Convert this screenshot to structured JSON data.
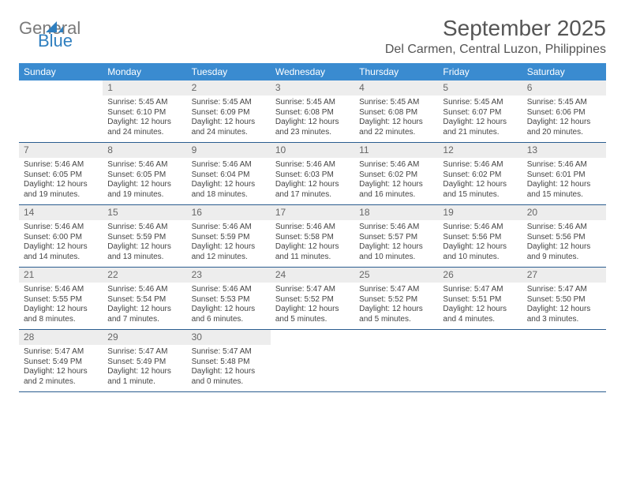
{
  "logo": {
    "line1": "General",
    "line2": "Blue"
  },
  "title": "September 2025",
  "location": "Del Carmen, Central Luzon, Philippines",
  "header_bg": "#3a8bd0",
  "weekdays": [
    "Sunday",
    "Monday",
    "Tuesday",
    "Wednesday",
    "Thursday",
    "Friday",
    "Saturday"
  ],
  "weeks": [
    [
      {
        "n": "",
        "sr": "",
        "ss": "",
        "dl1": "",
        "dl2": ""
      },
      {
        "n": "1",
        "sr": "Sunrise: 5:45 AM",
        "ss": "Sunset: 6:10 PM",
        "dl1": "Daylight: 12 hours",
        "dl2": "and 24 minutes."
      },
      {
        "n": "2",
        "sr": "Sunrise: 5:45 AM",
        "ss": "Sunset: 6:09 PM",
        "dl1": "Daylight: 12 hours",
        "dl2": "and 24 minutes."
      },
      {
        "n": "3",
        "sr": "Sunrise: 5:45 AM",
        "ss": "Sunset: 6:08 PM",
        "dl1": "Daylight: 12 hours",
        "dl2": "and 23 minutes."
      },
      {
        "n": "4",
        "sr": "Sunrise: 5:45 AM",
        "ss": "Sunset: 6:08 PM",
        "dl1": "Daylight: 12 hours",
        "dl2": "and 22 minutes."
      },
      {
        "n": "5",
        "sr": "Sunrise: 5:45 AM",
        "ss": "Sunset: 6:07 PM",
        "dl1": "Daylight: 12 hours",
        "dl2": "and 21 minutes."
      },
      {
        "n": "6",
        "sr": "Sunrise: 5:45 AM",
        "ss": "Sunset: 6:06 PM",
        "dl1": "Daylight: 12 hours",
        "dl2": "and 20 minutes."
      }
    ],
    [
      {
        "n": "7",
        "sr": "Sunrise: 5:46 AM",
        "ss": "Sunset: 6:05 PM",
        "dl1": "Daylight: 12 hours",
        "dl2": "and 19 minutes."
      },
      {
        "n": "8",
        "sr": "Sunrise: 5:46 AM",
        "ss": "Sunset: 6:05 PM",
        "dl1": "Daylight: 12 hours",
        "dl2": "and 19 minutes."
      },
      {
        "n": "9",
        "sr": "Sunrise: 5:46 AM",
        "ss": "Sunset: 6:04 PM",
        "dl1": "Daylight: 12 hours",
        "dl2": "and 18 minutes."
      },
      {
        "n": "10",
        "sr": "Sunrise: 5:46 AM",
        "ss": "Sunset: 6:03 PM",
        "dl1": "Daylight: 12 hours",
        "dl2": "and 17 minutes."
      },
      {
        "n": "11",
        "sr": "Sunrise: 5:46 AM",
        "ss": "Sunset: 6:02 PM",
        "dl1": "Daylight: 12 hours",
        "dl2": "and 16 minutes."
      },
      {
        "n": "12",
        "sr": "Sunrise: 5:46 AM",
        "ss": "Sunset: 6:02 PM",
        "dl1": "Daylight: 12 hours",
        "dl2": "and 15 minutes."
      },
      {
        "n": "13",
        "sr": "Sunrise: 5:46 AM",
        "ss": "Sunset: 6:01 PM",
        "dl1": "Daylight: 12 hours",
        "dl2": "and 15 minutes."
      }
    ],
    [
      {
        "n": "14",
        "sr": "Sunrise: 5:46 AM",
        "ss": "Sunset: 6:00 PM",
        "dl1": "Daylight: 12 hours",
        "dl2": "and 14 minutes."
      },
      {
        "n": "15",
        "sr": "Sunrise: 5:46 AM",
        "ss": "Sunset: 5:59 PM",
        "dl1": "Daylight: 12 hours",
        "dl2": "and 13 minutes."
      },
      {
        "n": "16",
        "sr": "Sunrise: 5:46 AM",
        "ss": "Sunset: 5:59 PM",
        "dl1": "Daylight: 12 hours",
        "dl2": "and 12 minutes."
      },
      {
        "n": "17",
        "sr": "Sunrise: 5:46 AM",
        "ss": "Sunset: 5:58 PM",
        "dl1": "Daylight: 12 hours",
        "dl2": "and 11 minutes."
      },
      {
        "n": "18",
        "sr": "Sunrise: 5:46 AM",
        "ss": "Sunset: 5:57 PM",
        "dl1": "Daylight: 12 hours",
        "dl2": "and 10 minutes."
      },
      {
        "n": "19",
        "sr": "Sunrise: 5:46 AM",
        "ss": "Sunset: 5:56 PM",
        "dl1": "Daylight: 12 hours",
        "dl2": "and 10 minutes."
      },
      {
        "n": "20",
        "sr": "Sunrise: 5:46 AM",
        "ss": "Sunset: 5:56 PM",
        "dl1": "Daylight: 12 hours",
        "dl2": "and 9 minutes."
      }
    ],
    [
      {
        "n": "21",
        "sr": "Sunrise: 5:46 AM",
        "ss": "Sunset: 5:55 PM",
        "dl1": "Daylight: 12 hours",
        "dl2": "and 8 minutes."
      },
      {
        "n": "22",
        "sr": "Sunrise: 5:46 AM",
        "ss": "Sunset: 5:54 PM",
        "dl1": "Daylight: 12 hours",
        "dl2": "and 7 minutes."
      },
      {
        "n": "23",
        "sr": "Sunrise: 5:46 AM",
        "ss": "Sunset: 5:53 PM",
        "dl1": "Daylight: 12 hours",
        "dl2": "and 6 minutes."
      },
      {
        "n": "24",
        "sr": "Sunrise: 5:47 AM",
        "ss": "Sunset: 5:52 PM",
        "dl1": "Daylight: 12 hours",
        "dl2": "and 5 minutes."
      },
      {
        "n": "25",
        "sr": "Sunrise: 5:47 AM",
        "ss": "Sunset: 5:52 PM",
        "dl1": "Daylight: 12 hours",
        "dl2": "and 5 minutes."
      },
      {
        "n": "26",
        "sr": "Sunrise: 5:47 AM",
        "ss": "Sunset: 5:51 PM",
        "dl1": "Daylight: 12 hours",
        "dl2": "and 4 minutes."
      },
      {
        "n": "27",
        "sr": "Sunrise: 5:47 AM",
        "ss": "Sunset: 5:50 PM",
        "dl1": "Daylight: 12 hours",
        "dl2": "and 3 minutes."
      }
    ],
    [
      {
        "n": "28",
        "sr": "Sunrise: 5:47 AM",
        "ss": "Sunset: 5:49 PM",
        "dl1": "Daylight: 12 hours",
        "dl2": "and 2 minutes."
      },
      {
        "n": "29",
        "sr": "Sunrise: 5:47 AM",
        "ss": "Sunset: 5:49 PM",
        "dl1": "Daylight: 12 hours",
        "dl2": "and 1 minute."
      },
      {
        "n": "30",
        "sr": "Sunrise: 5:47 AM",
        "ss": "Sunset: 5:48 PM",
        "dl1": "Daylight: 12 hours",
        "dl2": "and 0 minutes."
      },
      {
        "n": "",
        "sr": "",
        "ss": "",
        "dl1": "",
        "dl2": ""
      },
      {
        "n": "",
        "sr": "",
        "ss": "",
        "dl1": "",
        "dl2": ""
      },
      {
        "n": "",
        "sr": "",
        "ss": "",
        "dl1": "",
        "dl2": ""
      },
      {
        "n": "",
        "sr": "",
        "ss": "",
        "dl1": "",
        "dl2": ""
      }
    ]
  ]
}
